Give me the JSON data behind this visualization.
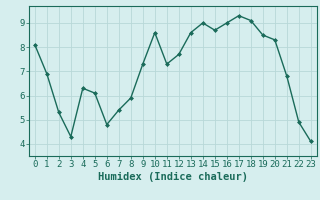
{
  "x": [
    0,
    1,
    2,
    3,
    4,
    5,
    6,
    7,
    8,
    9,
    10,
    11,
    12,
    13,
    14,
    15,
    16,
    17,
    18,
    19,
    20,
    21,
    22,
    23
  ],
  "y": [
    8.1,
    6.9,
    5.3,
    4.3,
    6.3,
    6.1,
    4.8,
    5.4,
    5.9,
    7.3,
    8.6,
    7.3,
    7.7,
    8.6,
    9.0,
    8.7,
    9.0,
    9.3,
    9.1,
    8.5,
    8.3,
    6.8,
    4.9,
    4.1
  ],
  "line_color": "#1a6b5a",
  "marker": "D",
  "marker_size": 2.0,
  "xlabel": "Humidex (Indice chaleur)",
  "xlim": [
    -0.5,
    23.5
  ],
  "ylim": [
    3.5,
    9.7
  ],
  "yticks": [
    4,
    5,
    6,
    7,
    8,
    9
  ],
  "xticks": [
    0,
    1,
    2,
    3,
    4,
    5,
    6,
    7,
    8,
    9,
    10,
    11,
    12,
    13,
    14,
    15,
    16,
    17,
    18,
    19,
    20,
    21,
    22,
    23
  ],
  "bg_color": "#d6eeee",
  "grid_color": "#b8d8d8",
  "tick_fontsize": 6.5,
  "xlabel_fontsize": 7.5,
  "line_width": 1.0
}
